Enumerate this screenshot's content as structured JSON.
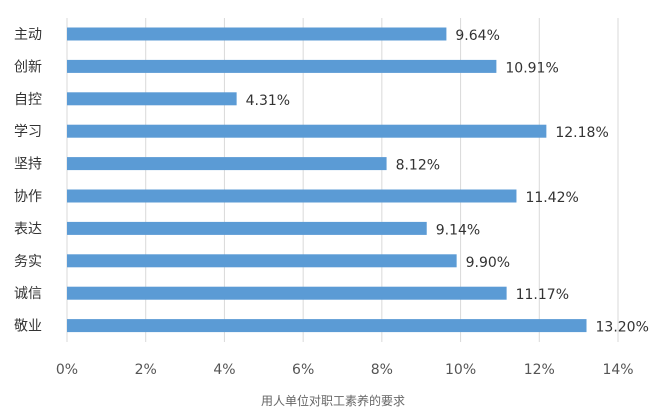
{
  "chart_data": {
    "type": "bar",
    "orientation": "horizontal",
    "categories": [
      "主动",
      "创新",
      "自控",
      "学习",
      "坚持",
      "协作",
      "表达",
      "务实",
      "诚信",
      "敬业"
    ],
    "values": [
      9.64,
      10.91,
      4.31,
      12.18,
      8.12,
      11.42,
      9.14,
      9.9,
      11.17,
      13.2
    ],
    "data_labels": [
      "9.64%",
      "10.91%",
      "4.31%",
      "12.18%",
      "8.12%",
      "11.42%",
      "9.14%",
      "9.90%",
      "11.17%",
      "13.20%"
    ],
    "xlim": [
      0,
      14
    ],
    "xticks": [
      "0%",
      "2%",
      "4%",
      "6%",
      "8%",
      "10%",
      "12%",
      "14%"
    ],
    "caption": "用人单位对职工素养的要求",
    "grid": "vertical",
    "legend": "none",
    "colors": {
      "bar": "#5b9bd5",
      "grid": "#d9d9d9"
    }
  }
}
